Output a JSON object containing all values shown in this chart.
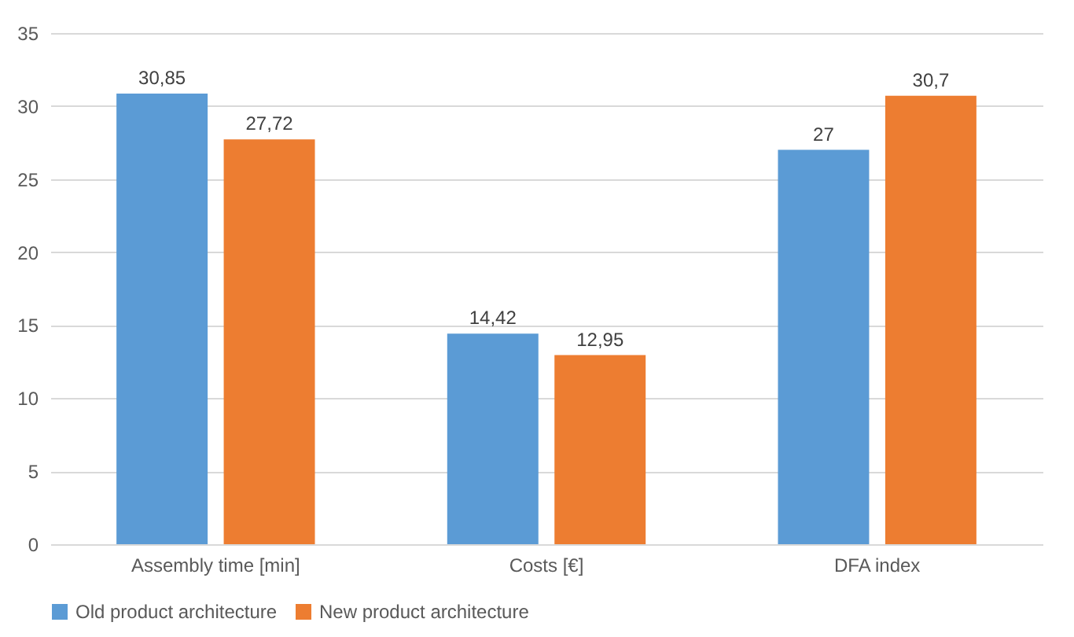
{
  "chart_data": {
    "type": "bar",
    "categories": [
      "Assembly time [min]",
      "Costs [€]",
      "DFA index"
    ],
    "series": [
      {
        "name": "Old product architecture",
        "color": "#5b9bd5",
        "values": [
          30.85,
          14.42,
          27
        ],
        "value_labels": [
          "30,85",
          "14,42",
          "27"
        ]
      },
      {
        "name": "New product architecture",
        "color": "#ed7d31",
        "values": [
          27.72,
          12.95,
          30.7
        ],
        "value_labels": [
          "27,72",
          "12,95",
          "30,7"
        ]
      }
    ],
    "ylim": [
      0,
      35
    ],
    "yticks": [
      0,
      5,
      10,
      15,
      20,
      25,
      30,
      35
    ],
    "grid": "y",
    "legend": "bottom"
  }
}
